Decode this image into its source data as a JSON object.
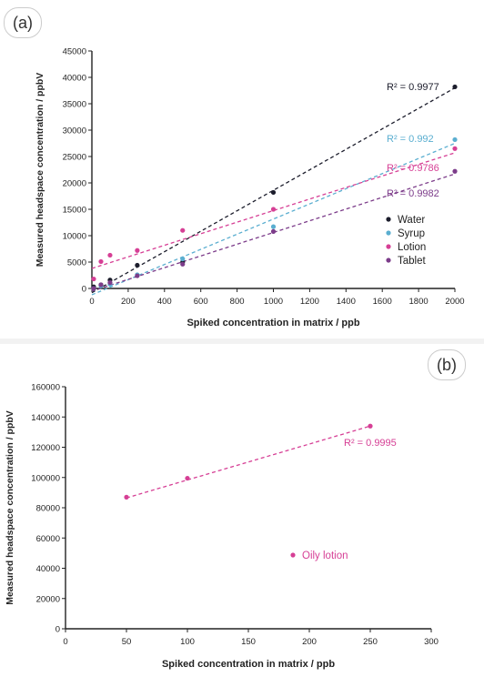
{
  "chart_data": [
    {
      "panel_label": "(a)",
      "type": "scatter",
      "title": "",
      "xlabel": "Spiked concentration in matrix / ppb",
      "ylabel": "Measured headspace concentration / ppbV",
      "xlim": [
        0,
        2000
      ],
      "ylim": [
        0,
        45000
      ],
      "xticks": [
        "0",
        "200",
        "400",
        "600",
        "800",
        "1000",
        "1200",
        "1400",
        "1600",
        "1800",
        "2000"
      ],
      "yticks": [
        "0",
        "5000",
        "10000",
        "15000",
        "20000",
        "25000",
        "30000",
        "35000",
        "40000",
        "45000"
      ],
      "grid": false,
      "legend": "right",
      "series": [
        {
          "name": "Water",
          "color": "#1c1d2c",
          "x": [
            10,
            50,
            100,
            250,
            500,
            1000,
            2000
          ],
          "y": [
            300,
            700,
            1600,
            4400,
            5000,
            18200,
            38200
          ],
          "trend": [
            [
              0,
              -800
            ],
            [
              2000,
              38000
            ]
          ],
          "r2": "R² = 0.9977"
        },
        {
          "name": "Syrup",
          "color": "#5aaed0",
          "x": [
            10,
            50,
            100,
            250,
            500,
            1000,
            2000
          ],
          "y": [
            0,
            500,
            800,
            2600,
            5600,
            11700,
            28200
          ],
          "trend": [
            [
              0,
              -1200
            ],
            [
              2000,
              27500
            ]
          ],
          "r2": "R² = 0.992"
        },
        {
          "name": "Lotion",
          "color": "#d63f95",
          "x": [
            10,
            50,
            100,
            250,
            500,
            1000,
            2000
          ],
          "y": [
            1800,
            5100,
            6300,
            7200,
            11000,
            15000,
            26500
          ],
          "trend": [
            [
              0,
              3800
            ],
            [
              2000,
              25700
            ]
          ],
          "r2": "R² = 0.9786"
        },
        {
          "name": "Tablet",
          "color": "#7c3c8a",
          "x": [
            10,
            50,
            100,
            250,
            500,
            1000,
            2000
          ],
          "y": [
            0,
            700,
            1100,
            2400,
            4600,
            10800,
            22200
          ],
          "trend": [
            [
              0,
              -500
            ],
            [
              2000,
              21700
            ]
          ],
          "r2": "R² = 0.9982"
        }
      ]
    },
    {
      "panel_label": "(b)",
      "type": "scatter",
      "title": "",
      "xlabel": "Spiked concentration in matrix / ppb",
      "ylabel": "Measured headspace concentration / ppbV",
      "xlim": [
        0,
        300
      ],
      "ylim": [
        0,
        160000
      ],
      "xticks": [
        "0",
        "50",
        "100",
        "150",
        "200",
        "250",
        "300"
      ],
      "yticks": [
        "0",
        "20000",
        "40000",
        "60000",
        "80000",
        "100000",
        "120000",
        "140000",
        "160000"
      ],
      "grid": false,
      "legend": "center-right",
      "series": [
        {
          "name": "Oily lotion",
          "color": "#d63f95",
          "x": [
            50,
            100,
            250
          ],
          "y": [
            87000,
            99500,
            134000
          ],
          "trend": [
            [
              50,
              86500
            ],
            [
              250,
              134000
            ]
          ],
          "r2": "R² = 0.9995"
        }
      ]
    }
  ]
}
